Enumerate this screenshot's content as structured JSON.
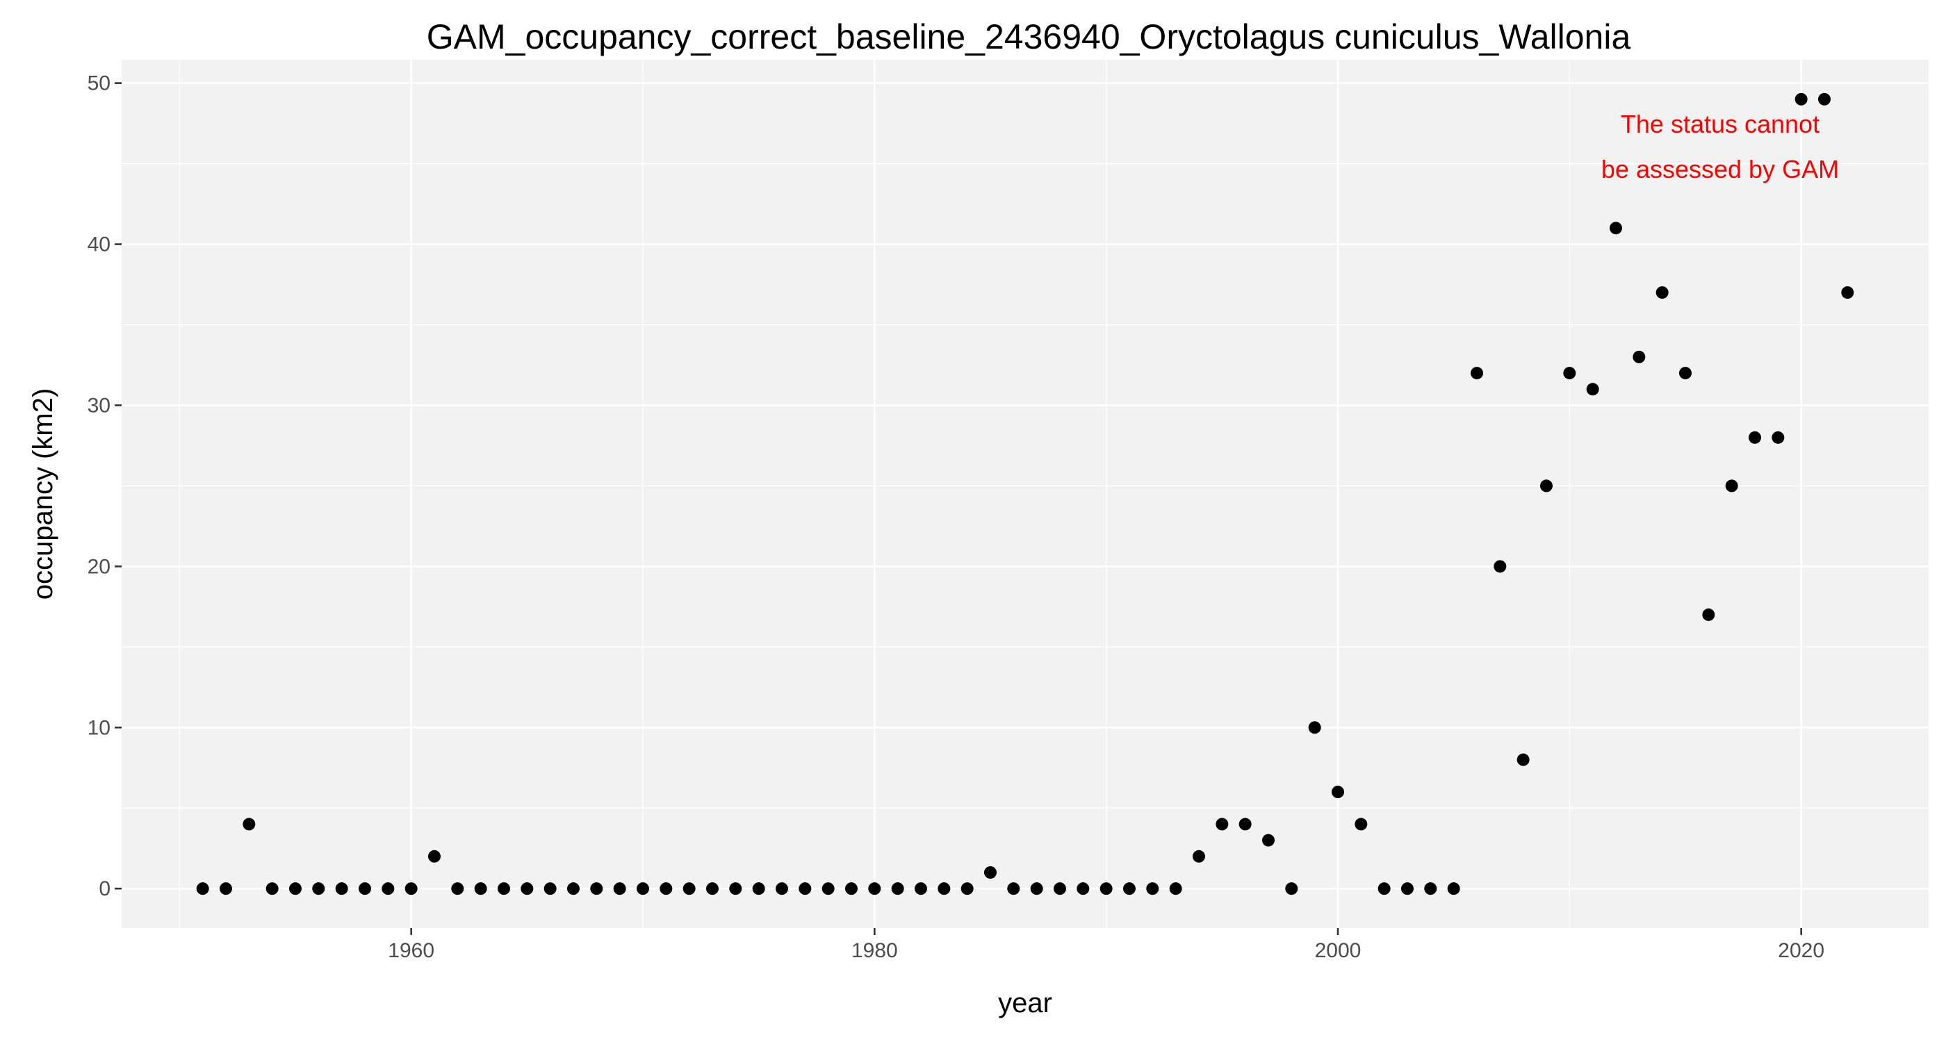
{
  "chart_data": {
    "type": "scatter",
    "title": "GAM_occupancy_correct_baseline_2436940_Oryctolagus cuniculus_Wallonia",
    "xlabel": "year",
    "ylabel": "occupancy (km2)",
    "xlim": [
      1947.5,
      2025.5
    ],
    "ylim": [
      -2.45,
      51.45
    ],
    "x_ticks": [
      1960,
      1980,
      2000,
      2020
    ],
    "y_ticks": [
      0,
      10,
      20,
      30,
      40,
      50
    ],
    "x_minor_ticks": [
      1950,
      1970,
      1990,
      2010
    ],
    "y_minor_ticks": [
      5,
      15,
      25,
      35,
      45
    ],
    "grid": true,
    "legend": "none",
    "colors": {
      "panel_background": "#f2f2f2",
      "grid": "#ffffff",
      "points": "#000000",
      "annotation": "#ff0000",
      "tick_label": "#4d4d4d"
    },
    "points": [
      {
        "x": 1951,
        "y": 0
      },
      {
        "x": 1952,
        "y": 0
      },
      {
        "x": 1953,
        "y": 4
      },
      {
        "x": 1954,
        "y": 0
      },
      {
        "x": 1955,
        "y": 0
      },
      {
        "x": 1956,
        "y": 0
      },
      {
        "x": 1957,
        "y": 0
      },
      {
        "x": 1958,
        "y": 0
      },
      {
        "x": 1959,
        "y": 0
      },
      {
        "x": 1960,
        "y": 0
      },
      {
        "x": 1961,
        "y": 2
      },
      {
        "x": 1962,
        "y": 0
      },
      {
        "x": 1963,
        "y": 0
      },
      {
        "x": 1964,
        "y": 0
      },
      {
        "x": 1965,
        "y": 0
      },
      {
        "x": 1966,
        "y": 0
      },
      {
        "x": 1967,
        "y": 0
      },
      {
        "x": 1968,
        "y": 0
      },
      {
        "x": 1969,
        "y": 0
      },
      {
        "x": 1970,
        "y": 0
      },
      {
        "x": 1971,
        "y": 0
      },
      {
        "x": 1972,
        "y": 0
      },
      {
        "x": 1973,
        "y": 0
      },
      {
        "x": 1974,
        "y": 0
      },
      {
        "x": 1975,
        "y": 0
      },
      {
        "x": 1976,
        "y": 0
      },
      {
        "x": 1977,
        "y": 0
      },
      {
        "x": 1978,
        "y": 0
      },
      {
        "x": 1979,
        "y": 0
      },
      {
        "x": 1980,
        "y": 0
      },
      {
        "x": 1981,
        "y": 0
      },
      {
        "x": 1982,
        "y": 0
      },
      {
        "x": 1983,
        "y": 0
      },
      {
        "x": 1984,
        "y": 0
      },
      {
        "x": 1985,
        "y": 1
      },
      {
        "x": 1986,
        "y": 0
      },
      {
        "x": 1987,
        "y": 0
      },
      {
        "x": 1988,
        "y": 0
      },
      {
        "x": 1989,
        "y": 0
      },
      {
        "x": 1990,
        "y": 0
      },
      {
        "x": 1991,
        "y": 0
      },
      {
        "x": 1992,
        "y": 0
      },
      {
        "x": 1993,
        "y": 0
      },
      {
        "x": 1994,
        "y": 2
      },
      {
        "x": 1995,
        "y": 4
      },
      {
        "x": 1996,
        "y": 4
      },
      {
        "x": 1997,
        "y": 3
      },
      {
        "x": 1998,
        "y": 0
      },
      {
        "x": 1999,
        "y": 10
      },
      {
        "x": 2000,
        "y": 6
      },
      {
        "x": 2001,
        "y": 4
      },
      {
        "x": 2002,
        "y": 0
      },
      {
        "x": 2003,
        "y": 0
      },
      {
        "x": 2004,
        "y": 0
      },
      {
        "x": 2005,
        "y": 0
      },
      {
        "x": 2006,
        "y": 32
      },
      {
        "x": 2007,
        "y": 20
      },
      {
        "x": 2008,
        "y": 8
      },
      {
        "x": 2009,
        "y": 25
      },
      {
        "x": 2010,
        "y": 32
      },
      {
        "x": 2011,
        "y": 31
      },
      {
        "x": 2012,
        "y": 41
      },
      {
        "x": 2013,
        "y": 33
      },
      {
        "x": 2014,
        "y": 37
      },
      {
        "x": 2015,
        "y": 32
      },
      {
        "x": 2016,
        "y": 17
      },
      {
        "x": 2017,
        "y": 25
      },
      {
        "x": 2018,
        "y": 28
      },
      {
        "x": 2019,
        "y": 28
      },
      {
        "x": 2020,
        "y": 49
      },
      {
        "x": 2021,
        "y": 49
      },
      {
        "x": 2022,
        "y": 37
      }
    ],
    "annotation": {
      "lines": [
        "The status cannot",
        "be assessed by GAM"
      ]
    }
  }
}
